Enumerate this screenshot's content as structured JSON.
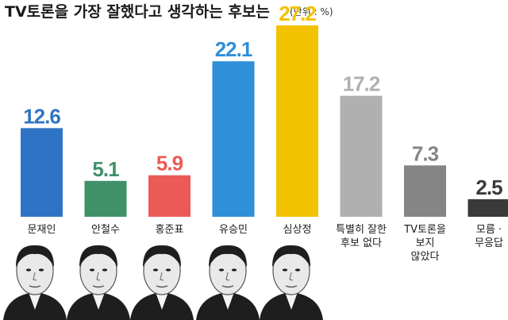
{
  "chart_data": {
    "type": "bar",
    "title": "TV토론을 가장 잘했다고 생각하는 후보는",
    "unit": "(단위 : %)",
    "categories": [
      [
        "문재인"
      ],
      [
        "안철수"
      ],
      [
        "홍준표"
      ],
      [
        "유승민"
      ],
      [
        "심상정"
      ],
      [
        "특별히 잘한",
        "후보 없다"
      ],
      [
        "TV토론을",
        "보지",
        "않았다"
      ],
      [
        "모름 ·",
        "무응답"
      ]
    ],
    "values": [
      12.6,
      5.1,
      5.9,
      22.1,
      27.2,
      17.2,
      7.3,
      2.5
    ],
    "value_labels": [
      "12.6",
      "5.1",
      "5.9",
      "22.1",
      "27.2",
      "17.2",
      "7.3",
      "2.5"
    ],
    "colors": [
      "#2f74c4",
      "#3f9168",
      "#ec5a57",
      "#2f8fd8",
      "#f2c200",
      "#b0b0b0",
      "#858585",
      "#3a3a3a"
    ],
    "ylim": [
      0,
      27.2
    ],
    "grid": false,
    "legend": "none"
  }
}
